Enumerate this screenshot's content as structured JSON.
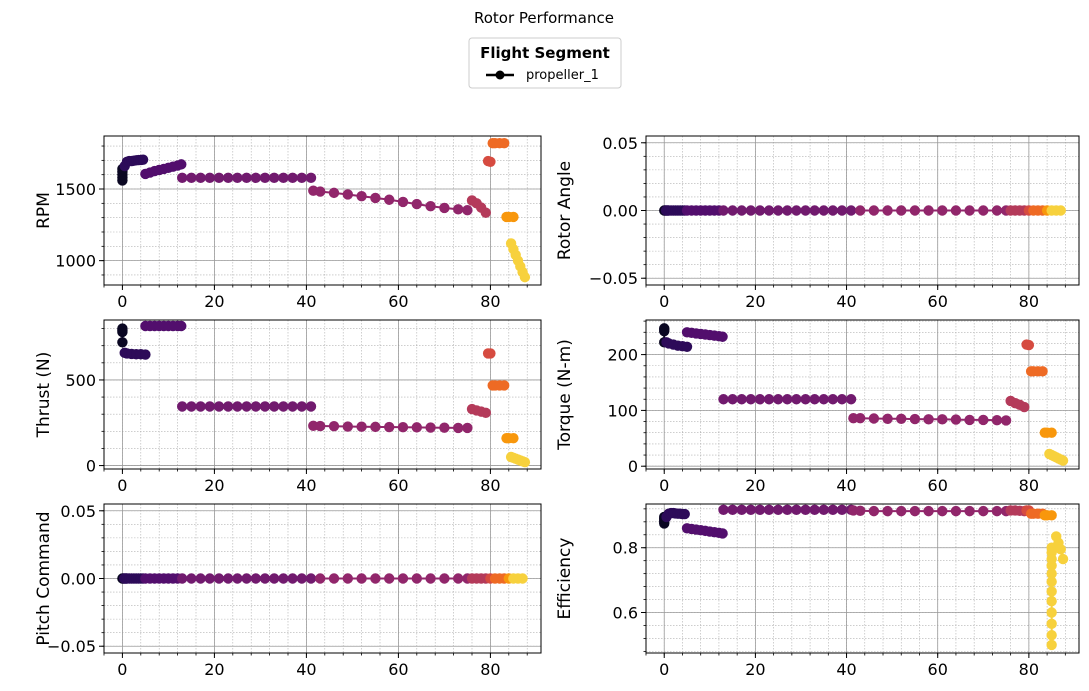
{
  "figure": {
    "title": "Rotor Performance",
    "legend": {
      "title": "Flight Segment",
      "entries": [
        {
          "label": "propeller_1",
          "color": "#000000",
          "marker": "circle"
        }
      ],
      "placement": "top-center"
    },
    "colormap": "inferno",
    "grid": "major and minor"
  },
  "chart_data": [
    {
      "name": "rpm-panel",
      "type": "scatter",
      "ylabel": "RPM",
      "xlabel": "",
      "xlim": [
        -4,
        91
      ],
      "ylim": [
        830,
        1870
      ],
      "xticks": [
        "0",
        "20",
        "40",
        "60",
        "80"
      ],
      "yticks": [
        "1000",
        "1500"
      ],
      "segments": [
        {
          "seg": 0,
          "x": [
            0,
            0,
            0,
            0,
            0
          ],
          "y": [
            1560,
            1580,
            1600,
            1620,
            1640
          ]
        },
        {
          "seg": 1,
          "x": [
            0.5,
            1,
            1.5,
            2,
            2.5,
            3,
            3.5,
            4,
            4.5
          ],
          "y": [
            1660,
            1690,
            1695,
            1695,
            1698,
            1700,
            1702,
            1703,
            1705
          ]
        },
        {
          "seg": 2,
          "x": [
            5,
            6,
            7,
            8,
            9,
            10,
            11,
            12,
            12.8
          ],
          "y": [
            1605,
            1615,
            1625,
            1633,
            1640,
            1648,
            1656,
            1664,
            1672
          ]
        },
        {
          "seg": 3,
          "x": [
            13,
            15,
            17,
            19,
            21,
            23,
            25,
            27,
            29,
            31,
            33,
            35,
            37,
            39,
            41
          ],
          "y": [
            1578,
            1578,
            1578,
            1578,
            1578,
            1578,
            1578,
            1578,
            1578,
            1578,
            1578,
            1578,
            1578,
            1578,
            1578
          ]
        },
        {
          "seg": 4,
          "x": [
            41.5,
            43,
            46,
            49,
            52,
            55,
            58,
            61,
            64,
            67,
            70,
            73,
            75
          ],
          "y": [
            1488,
            1482,
            1473,
            1462,
            1450,
            1438,
            1425,
            1410,
            1395,
            1380,
            1368,
            1358,
            1352
          ]
        },
        {
          "seg": 5,
          "x": [
            76,
            77,
            78,
            79
          ],
          "y": [
            1420,
            1400,
            1370,
            1335
          ]
        },
        {
          "seg": 6,
          "x": [
            79.5,
            80
          ],
          "y": [
            1695,
            1690
          ]
        },
        {
          "seg": 7,
          "x": [
            80.5,
            81,
            82,
            83
          ],
          "y": [
            1820,
            1820,
            1820,
            1820
          ]
        },
        {
          "seg": 8,
          "x": [
            83.5,
            84,
            85
          ],
          "y": [
            1305,
            1305,
            1305
          ]
        },
        {
          "seg": 9,
          "x": [
            84.5,
            85,
            85.5,
            86,
            86.5,
            87,
            87.5
          ],
          "y": [
            1120,
            1080,
            1040,
            1000,
            960,
            920,
            885
          ]
        }
      ]
    },
    {
      "name": "rotor-angle-panel",
      "type": "scatter",
      "ylabel": "Rotor Angle",
      "xlabel": "",
      "xlim": [
        -4,
        91
      ],
      "ylim": [
        -0.055,
        0.055
      ],
      "xticks": [
        "0",
        "20",
        "40",
        "60",
        "80"
      ],
      "yticks": [
        "−0.05",
        "0.00",
        "0.05"
      ],
      "constant_y": 0
    },
    {
      "name": "thrust-panel",
      "type": "scatter",
      "ylabel": "Thrust (N)",
      "xlabel": "",
      "xlim": [
        -4,
        91
      ],
      "ylim": [
        -20,
        850
      ],
      "xticks": [
        "0",
        "20",
        "40",
        "60",
        "80"
      ],
      "yticks": [
        "0",
        "500"
      ],
      "segments": [
        {
          "seg": 0,
          "x": [
            0,
            0,
            0,
            0
          ],
          "y": [
            720,
            780,
            790,
            800
          ]
        },
        {
          "seg": 1,
          "x": [
            0.5,
            1,
            2,
            3,
            4,
            5
          ],
          "y": [
            658,
            655,
            652,
            650,
            650,
            648
          ]
        },
        {
          "seg": 2,
          "x": [
            5,
            6,
            7,
            8,
            9,
            10,
            11,
            12,
            12.8
          ],
          "y": [
            815,
            815,
            815,
            815,
            815,
            815,
            815,
            815,
            815
          ]
        },
        {
          "seg": 3,
          "x": [
            13,
            15,
            17,
            19,
            21,
            23,
            25,
            27,
            29,
            31,
            33,
            35,
            37,
            39,
            41
          ],
          "y": [
            345,
            345,
            345,
            345,
            345,
            345,
            345,
            345,
            345,
            345,
            345,
            345,
            345,
            345,
            345
          ]
        },
        {
          "seg": 4,
          "x": [
            41.5,
            43,
            46,
            49,
            52,
            55,
            58,
            61,
            64,
            67,
            70,
            73,
            75
          ],
          "y": [
            232,
            231,
            230,
            228,
            227,
            226,
            225,
            224,
            223,
            222,
            221,
            220,
            220
          ]
        },
        {
          "seg": 5,
          "x": [
            76,
            77,
            78,
            79
          ],
          "y": [
            330,
            322,
            315,
            308
          ]
        },
        {
          "seg": 6,
          "x": [
            79.5,
            80
          ],
          "y": [
            655,
            655
          ]
        },
        {
          "seg": 7,
          "x": [
            80.5,
            81,
            82,
            83
          ],
          "y": [
            468,
            468,
            468,
            468
          ]
        },
        {
          "seg": 8,
          "x": [
            83.5,
            84,
            85
          ],
          "y": [
            160,
            160,
            160
          ]
        },
        {
          "seg": 9,
          "x": [
            84.5,
            85,
            85.5,
            86,
            86.5,
            87,
            87.5
          ],
          "y": [
            50,
            45,
            40,
            35,
            30,
            25,
            20
          ]
        }
      ]
    },
    {
      "name": "torque-panel",
      "type": "scatter",
      "ylabel": "Torque (N-m)",
      "xlabel": "",
      "xlim": [
        -4,
        91
      ],
      "ylim": [
        -5,
        262
      ],
      "xticks": [
        "0",
        "20",
        "40",
        "60",
        "80"
      ],
      "yticks": [
        "0",
        "100",
        "200"
      ],
      "segments": [
        {
          "seg": 0,
          "x": [
            0,
            0,
            0,
            0
          ],
          "y": [
            222,
            242,
            245,
            247
          ]
        },
        {
          "seg": 1,
          "x": [
            0.5,
            1,
            2,
            3,
            4,
            5
          ],
          "y": [
            222,
            220,
            218,
            216,
            215,
            214
          ]
        },
        {
          "seg": 2,
          "x": [
            5,
            6,
            7,
            8,
            9,
            10,
            11,
            12,
            12.8
          ],
          "y": [
            240,
            239,
            238,
            237,
            236,
            235,
            234,
            233,
            232
          ]
        },
        {
          "seg": 3,
          "x": [
            13,
            15,
            17,
            19,
            21,
            23,
            25,
            27,
            29,
            31,
            33,
            35,
            37,
            39,
            41
          ],
          "y": [
            120,
            120,
            120,
            120,
            120,
            120,
            120,
            120,
            120,
            120,
            120,
            120,
            120,
            120,
            120
          ]
        },
        {
          "seg": 4,
          "x": [
            41.5,
            43,
            46,
            49,
            52,
            55,
            58,
            61,
            64,
            67,
            70,
            73,
            75
          ],
          "y": [
            86,
            86,
            85.5,
            85,
            85,
            84.5,
            84,
            84,
            83.5,
            83,
            83,
            82.5,
            82
          ]
        },
        {
          "seg": 5,
          "x": [
            76,
            77,
            78,
            79
          ],
          "y": [
            117,
            113,
            110,
            106
          ]
        },
        {
          "seg": 6,
          "x": [
            79.5,
            80
          ],
          "y": [
            218,
            217
          ]
        },
        {
          "seg": 7,
          "x": [
            80.5,
            81,
            82,
            83
          ],
          "y": [
            170,
            170,
            170,
            170
          ]
        },
        {
          "seg": 8,
          "x": [
            83.5,
            84,
            85
          ],
          "y": [
            60,
            60,
            60
          ]
        },
        {
          "seg": 9,
          "x": [
            84.5,
            85,
            85.5,
            86,
            86.5,
            87,
            87.5
          ],
          "y": [
            22,
            20,
            18,
            16,
            14,
            12,
            10
          ]
        }
      ]
    },
    {
      "name": "pitch-command-panel",
      "type": "scatter",
      "ylabel": "Pitch Command",
      "xlabel": "",
      "xlim": [
        -4,
        91
      ],
      "ylim": [
        -0.055,
        0.055
      ],
      "xticks": [
        "0",
        "20",
        "40",
        "60",
        "80"
      ],
      "yticks": [
        "−0.05",
        "0.00",
        "0.05"
      ],
      "constant_y": 0
    },
    {
      "name": "efficiency-panel",
      "type": "scatter",
      "ylabel": "Efficiency",
      "xlabel": "",
      "xlim": [
        -4,
        91
      ],
      "ylim": [
        0.475,
        0.935
      ],
      "xticks": [
        "0",
        "20",
        "40",
        "60",
        "80"
      ],
      "yticks": [
        "0.6",
        "0.8"
      ],
      "segments": [
        {
          "seg": 0,
          "x": [
            0,
            0,
            0,
            0,
            0
          ],
          "y": [
            0.875,
            0.88,
            0.885,
            0.89,
            0.895
          ]
        },
        {
          "seg": 1,
          "x": [
            0.5,
            1,
            1.5,
            2,
            2.5,
            3,
            3.5,
            4,
            4.5
          ],
          "y": [
            0.895,
            0.905,
            0.907,
            0.907,
            0.906,
            0.905,
            0.905,
            0.904,
            0.904
          ]
        },
        {
          "seg": 2,
          "x": [
            5,
            6,
            7,
            8,
            9,
            10,
            11,
            12,
            12.8
          ],
          "y": [
            0.86,
            0.858,
            0.856,
            0.854,
            0.852,
            0.85,
            0.848,
            0.846,
            0.844
          ]
        },
        {
          "seg": 3,
          "x": [
            13,
            15,
            17,
            19,
            21,
            23,
            25,
            27,
            29,
            31,
            33,
            35,
            37,
            39,
            41
          ],
          "y": [
            0.917,
            0.917,
            0.917,
            0.917,
            0.917,
            0.917,
            0.917,
            0.917,
            0.917,
            0.917,
            0.917,
            0.917,
            0.917,
            0.917,
            0.917
          ]
        },
        {
          "seg": 4,
          "x": [
            41.5,
            43,
            46,
            49,
            52,
            55,
            58,
            61,
            64,
            67,
            70,
            73,
            75
          ],
          "y": [
            0.915,
            0.914,
            0.913,
            0.913,
            0.913,
            0.913,
            0.913,
            0.913,
            0.913,
            0.913,
            0.913,
            0.913,
            0.913
          ]
        },
        {
          "seg": 5,
          "x": [
            76,
            77,
            78,
            79
          ],
          "y": [
            0.915,
            0.915,
            0.914,
            0.913
          ]
        },
        {
          "seg": 6,
          "x": [
            79.5,
            80
          ],
          "y": [
            0.915,
            0.915
          ]
        },
        {
          "seg": 7,
          "x": [
            80.5,
            81,
            82,
            83
          ],
          "y": [
            0.905,
            0.905,
            0.905,
            0.905
          ]
        },
        {
          "seg": 8,
          "x": [
            83.5,
            84,
            85
          ],
          "y": [
            0.9,
            0.9,
            0.9
          ]
        },
        {
          "seg": 9,
          "x": [
            85,
            85,
            85,
            85,
            85,
            85,
            85,
            85,
            85,
            85,
            85,
            85
          ],
          "y": [
            0.8,
            0.785,
            0.765,
            0.745,
            0.72,
            0.695,
            0.665,
            0.635,
            0.6,
            0.565,
            0.53,
            0.5
          ]
        },
        {
          "seg": 9,
          "x": [
            86,
            86.5,
            87,
            87.5
          ],
          "y": [
            0.835,
            0.815,
            0.795,
            0.765
          ]
        }
      ]
    }
  ]
}
